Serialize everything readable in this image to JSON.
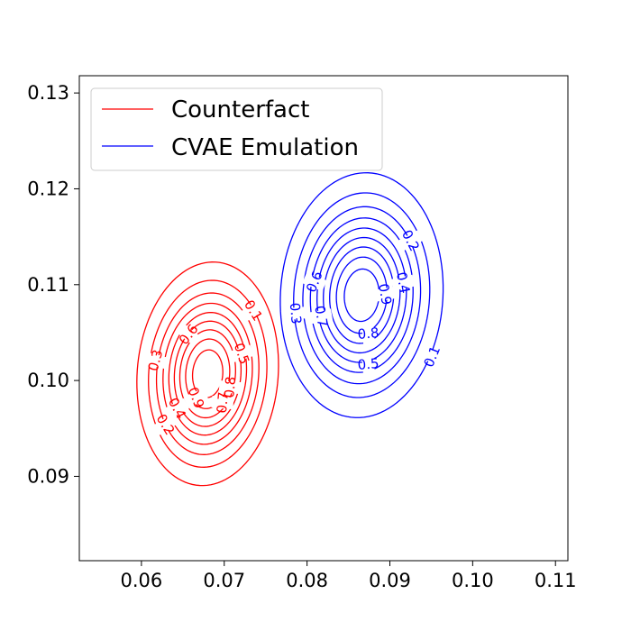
{
  "chart_data": {
    "type": "contour",
    "title": "",
    "xlabel": "",
    "ylabel": "",
    "xlim": [
      0.0525,
      0.1115
    ],
    "ylim": [
      0.0812,
      0.1318
    ],
    "xticks": [
      0.06,
      0.07,
      0.08,
      0.09,
      0.1,
      0.11
    ],
    "xtick_labels": [
      "0.06",
      "0.07",
      "0.08",
      "0.09",
      "0.10",
      "0.11"
    ],
    "yticks": [
      0.09,
      0.1,
      0.11,
      0.12,
      0.13
    ],
    "ytick_labels": [
      "0.09",
      "0.10",
      "0.11",
      "0.12",
      "0.13"
    ],
    "grid": false,
    "legend_position": "top-left",
    "levels": [
      0.1,
      0.2,
      0.3,
      0.4,
      0.5,
      0.6,
      0.7,
      0.8,
      0.9
    ],
    "series": [
      {
        "name": "Counterfact",
        "color": "#ff0000",
        "center": [
          0.068,
          0.1007
        ],
        "outer_half_width": 0.0085,
        "outer_half_height": 0.0117,
        "tilt": 0.12,
        "level_labels": [
          {
            "text": "0.1",
            "at": [
              0.0735,
              0.1073
            ],
            "rotation": 58
          },
          {
            "text": "0.2",
            "at": [
              0.0629,
              0.0954
            ],
            "rotation": 58
          },
          {
            "text": "0.3",
            "at": [
              0.0617,
              0.1021
            ],
            "rotation": -75
          },
          {
            "text": "0.4",
            "at": [
              0.0643,
              0.0971
            ],
            "rotation": 62
          },
          {
            "text": "0.5",
            "at": [
              0.0721,
              0.1028
            ],
            "rotation": 72
          },
          {
            "text": "0.6",
            "at": [
              0.0657,
              0.1048
            ],
            "rotation": -52
          },
          {
            "text": "0.7",
            "at": [
              0.0698,
              0.0977
            ],
            "rotation": -85
          },
          {
            "text": "0.8",
            "at": [
              0.0707,
              0.0993
            ],
            "rotation": -85
          },
          {
            "text": "0.9",
            "at": [
              0.0666,
              0.0982
            ],
            "rotation": 68
          }
        ]
      },
      {
        "name": "CVAE Emulation",
        "color": "#0000ff",
        "center": [
          0.0866,
          0.1089
        ],
        "outer_half_width": 0.0098,
        "outer_half_height": 0.0128,
        "tilt": 0.1,
        "level_labels": [
          {
            "text": "0.1",
            "at": [
              0.0951,
              0.1025
            ],
            "rotation": -68
          },
          {
            "text": "0.2",
            "at": [
              0.0925,
              0.1146
            ],
            "rotation": 62
          },
          {
            "text": "0.3",
            "at": [
              0.0786,
              0.107
            ],
            "rotation": 85
          },
          {
            "text": "0.4",
            "at": [
              0.0916,
              0.1102
            ],
            "rotation": 78
          },
          {
            "text": "0.5",
            "at": [
              0.0874,
              0.1017
            ],
            "rotation": -5
          },
          {
            "text": "0.6",
            "at": [
              0.0809,
              0.1103
            ],
            "rotation": -68
          },
          {
            "text": "0.7",
            "at": [
              0.0817,
              0.1067
            ],
            "rotation": 80
          },
          {
            "text": "0.8",
            "at": [
              0.0874,
              0.1049
            ],
            "rotation": -5
          },
          {
            "text": "0.9",
            "at": [
              0.0894,
              0.109
            ],
            "rotation": 80
          }
        ]
      }
    ]
  }
}
